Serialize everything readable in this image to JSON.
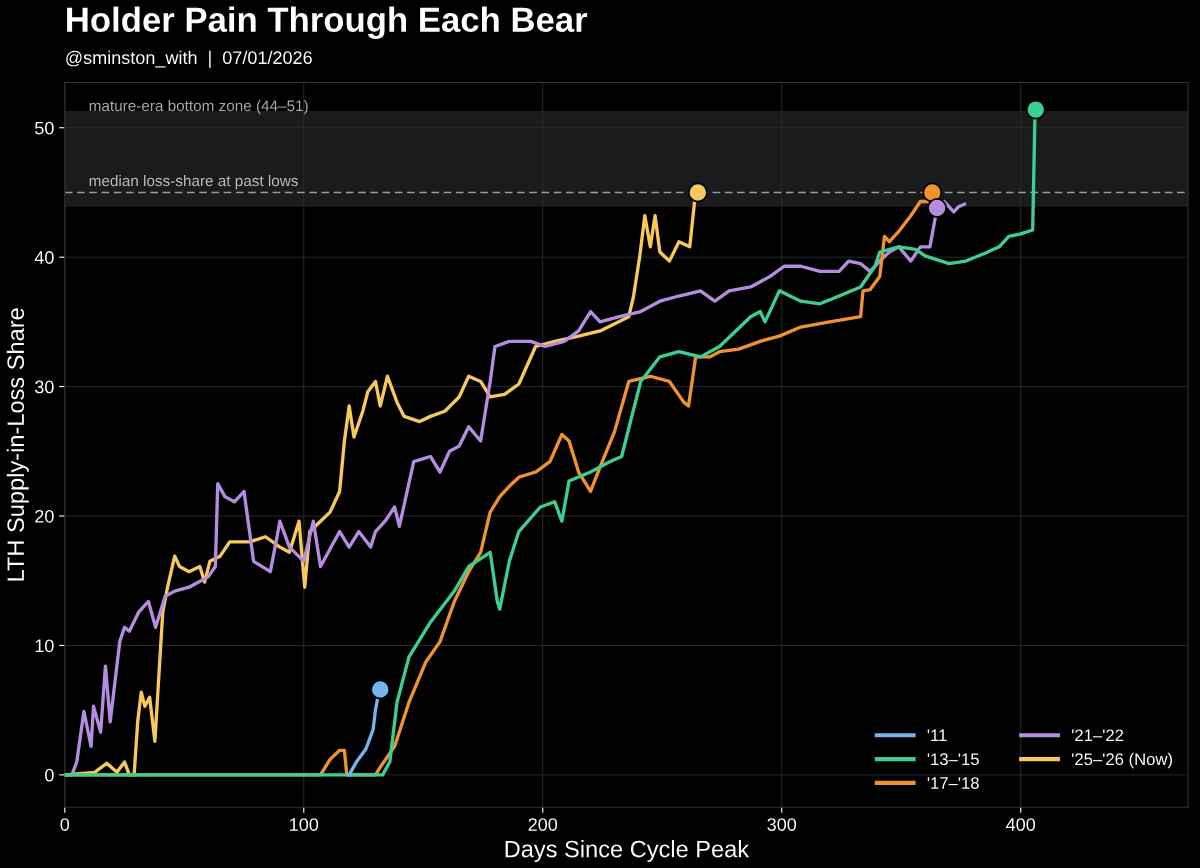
{
  "chart_data": {
    "type": "line",
    "title": "Holder Pain Through Each Bear",
    "subtitle": "@sminston_with  |  07/01/2026",
    "xlabel": "Days Since Cycle Peak",
    "ylabel": "LTH Supply-in-Loss Share",
    "xlim": [
      0,
      470
    ],
    "ylim": [
      -2.5,
      53.5
    ],
    "xticks": [
      0,
      100,
      200,
      300,
      400
    ],
    "yticks": [
      0,
      10,
      20,
      30,
      40,
      50
    ],
    "grid": true,
    "legend": "bottom right",
    "line_style": "solid",
    "marker": "none",
    "bands": [
      {
        "axis": "y",
        "from": 43.9,
        "to": 51.3,
        "label": "mature-era bottom zone (44–51)",
        "color": "#1a1b1d"
      }
    ],
    "ref_lines": [
      {
        "axis": "y",
        "value": 45,
        "label": "median loss-share at past lows",
        "color": "#9a9a9a",
        "line_style": "dashed"
      }
    ],
    "series": [
      {
        "name": "'11",
        "color": "#74b4ee",
        "x": [
          119,
          122,
          126,
          129,
          130,
          131,
          132
        ],
        "values": [
          0,
          1,
          2,
          3.5,
          5,
          6,
          6.6
        ]
      },
      {
        "name": "'13–'15",
        "color": "#3ccf91",
        "x": [
          0,
          133,
          136,
          139,
          144,
          153,
          163,
          169,
          178,
          181,
          182,
          186,
          190,
          199,
          205,
          208,
          211,
          220,
          228,
          233,
          241,
          249,
          257,
          266,
          274,
          287,
          291,
          293,
          299,
          308,
          316,
          324,
          333,
          339,
          341,
          349,
          356,
          360,
          370,
          377,
          385,
          391,
          395,
          400,
          405,
          406
        ],
        "values": [
          0,
          0,
          1,
          5.6,
          9.1,
          11.8,
          14.2,
          16.1,
          17.2,
          13.4,
          12.8,
          16.5,
          18.8,
          20.7,
          21.1,
          19.6,
          22.7,
          23.4,
          24.2,
          24.6,
          30.4,
          32.3,
          32.7,
          32.3,
          33.1,
          35.4,
          35.8,
          35,
          37.4,
          36.6,
          36.4,
          37,
          37.7,
          39.3,
          40.4,
          40.8,
          40.6,
          40.1,
          39.5,
          39.7,
          40.3,
          40.8,
          41.6,
          41.8,
          42.1,
          51.3
        ]
      },
      {
        "name": "'17–'18",
        "color": "#f0922e",
        "x": [
          0,
          107,
          111,
          115,
          117,
          118,
          130,
          132,
          138,
          144,
          151,
          157,
          163,
          169,
          174,
          178,
          182,
          186,
          190,
          197,
          203,
          208,
          211,
          215,
          220,
          224,
          230,
          236,
          245,
          253,
          259,
          261,
          264,
          270,
          274,
          282,
          291,
          299,
          308,
          320,
          333,
          334,
          337,
          341,
          343,
          345,
          349,
          354,
          358,
          362,
          363
        ],
        "values": [
          0,
          0,
          1.2,
          1.9,
          1.9,
          0,
          0,
          0.6,
          2.2,
          5.6,
          8.7,
          10.3,
          13.4,
          15.7,
          17.2,
          20.3,
          21.5,
          22.3,
          23,
          23.4,
          24.2,
          26.3,
          25.8,
          23.4,
          21.9,
          23.8,
          26.5,
          30.4,
          30.8,
          30.4,
          28.8,
          28.5,
          32.3,
          32.3,
          32.7,
          32.9,
          33.5,
          33.9,
          34.6,
          35,
          35.4,
          37.4,
          37.5,
          38.5,
          41.6,
          41.2,
          42,
          43.2,
          44.3,
          44.3,
          45
        ]
      },
      {
        "name": "'21–'22",
        "color": "#b48ce0",
        "x": [
          0,
          3,
          5,
          8,
          11,
          12,
          15,
          17,
          19,
          21,
          23,
          25,
          27,
          31,
          35,
          38,
          42,
          46,
          52,
          56,
          60,
          63,
          64,
          67,
          71,
          75,
          79,
          86,
          88,
          90,
          94,
          100,
          104,
          107,
          115,
          119,
          123,
          128,
          130,
          134,
          138,
          140,
          146,
          153,
          157,
          161,
          165,
          169,
          174,
          178,
          180,
          186,
          195,
          201,
          209,
          215,
          220,
          224,
          232,
          241,
          249,
          257,
          266,
          272,
          278,
          287,
          295,
          301,
          308,
          316,
          324,
          328,
          333,
          337,
          341,
          345,
          349,
          354,
          358,
          362,
          365,
          368,
          372,
          374,
          376.5
        ],
        "values": [
          0,
          0,
          1,
          4.9,
          2.2,
          5.3,
          3.3,
          8.4,
          4.1,
          7.2,
          10.3,
          11.4,
          11.1,
          12.6,
          13.4,
          11.4,
          13.8,
          14.2,
          14.5,
          14.9,
          15.3,
          16.1,
          22.5,
          21.5,
          21.1,
          21.9,
          16.5,
          15.7,
          17.6,
          19.6,
          17.6,
          16.5,
          19.6,
          16.1,
          18.8,
          17.6,
          18.8,
          17.6,
          18.8,
          19.6,
          20.7,
          19.2,
          24.2,
          24.6,
          23.4,
          25,
          25.4,
          26.9,
          25.8,
          30.4,
          33.1,
          33.5,
          33.5,
          33.1,
          33.5,
          34.3,
          35.8,
          35,
          35.4,
          35.8,
          36.6,
          37,
          37.4,
          36.6,
          37.4,
          37.7,
          38.5,
          39.3,
          39.3,
          38.9,
          38.9,
          39.7,
          39.5,
          38.9,
          39.7,
          40.4,
          40.8,
          39.7,
          40.8,
          40.8,
          43.8,
          44.3,
          43.5,
          43.9,
          44.1
        ]
      },
      {
        "name": "'25–'26 (Now)",
        "color": "#f7c95c",
        "x": [
          0,
          12.5,
          17.6,
          21.8,
          25,
          27,
          29,
          30.5,
          32,
          33.5,
          35.5,
          37.7,
          39.7,
          41,
          43,
          46,
          48,
          52,
          56.5,
          58.5,
          60.7,
          65,
          69,
          77.4,
          84,
          90,
          94,
          98,
          100.4,
          102.5,
          107,
          111,
          115,
          117,
          119,
          121,
          124.7,
          126.8,
          130,
          132,
          135,
          139,
          142,
          148.5,
          153,
          159,
          165,
          169,
          174,
          178,
          184,
          190,
          197,
          205,
          215,
          224,
          236,
          238,
          240.6,
          242.7,
          245,
          247,
          249,
          253,
          257,
          261.5,
          264,
          265
        ],
        "values": [
          0,
          0.2,
          0.9,
          0.2,
          1,
          0,
          0,
          4.1,
          6.4,
          5.3,
          6,
          2.6,
          8.7,
          12.6,
          14.5,
          16.9,
          16.1,
          15.7,
          16.1,
          14.9,
          16.5,
          16.9,
          18,
          18,
          18.4,
          17.6,
          17.2,
          19.6,
          14.5,
          18.8,
          19.6,
          20.3,
          21.9,
          25.8,
          28.5,
          26.1,
          28.1,
          29.6,
          30.4,
          28.5,
          30.8,
          28.8,
          27.7,
          27.3,
          27.7,
          28.1,
          29.2,
          30.8,
          30.4,
          29.2,
          29.4,
          30.2,
          33.1,
          33.5,
          33.9,
          34.3,
          35.4,
          37,
          40.1,
          43.2,
          40.8,
          43.2,
          40.4,
          39.7,
          41.2,
          40.8,
          45.1,
          45
        ]
      },
      {
        "type": "scatter",
        "marker": "circle",
        "color": "#74b4ee",
        "x": [
          132
        ],
        "values": [
          6.6
        ]
      },
      {
        "type": "scatter",
        "marker": "circle",
        "color": "#3ccf91",
        "x": [
          406.3
        ],
        "values": [
          51.4
        ]
      },
      {
        "type": "scatter",
        "marker": "circle",
        "color": "#f0922e",
        "x": [
          363
        ],
        "values": [
          45
        ]
      },
      {
        "type": "scatter",
        "marker": "circle",
        "color": "#b48ce0",
        "x": [
          365
        ],
        "values": [
          43.8
        ]
      },
      {
        "type": "scatter",
        "marker": "circle",
        "color": "#f7c95c",
        "x": [
          264.9
        ],
        "values": [
          45
        ]
      }
    ]
  }
}
